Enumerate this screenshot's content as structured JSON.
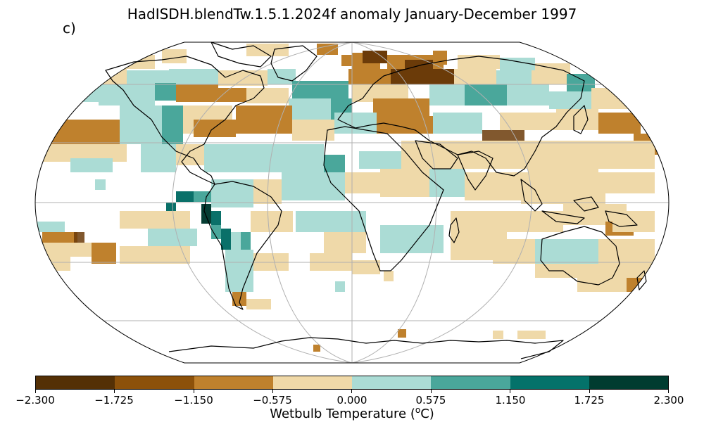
{
  "title": "HadISDH.blendTw.1.5.1.2024f anomaly January-December 1997",
  "panel_label": "c)",
  "colorbar": {
    "label_text": "Wetbulb Temperature (",
    "label_sup": "o",
    "label_unit": "C)",
    "ticks": [
      "−2.300",
      "−1.725",
      "−1.150",
      "−0.575",
      "0.000",
      "0.575",
      "1.150",
      "1.725",
      "2.300"
    ],
    "colors": [
      "#543005",
      "#8c510a",
      "#bf812d",
      "#f0d9a8",
      "#abdcd5",
      "#4aa79b",
      "#04726a",
      "#003c30"
    ]
  },
  "map": {
    "projection": "Robinson",
    "gridlines": true,
    "coastlines": true,
    "palette": {
      "dark_brown": "#6b3b09",
      "mid_brown": "#bf812d",
      "light_tan": "#efd9a9",
      "light_teal": "#abdcd5",
      "mid_teal": "#4aa79b",
      "dark_teal": "#0a7069",
      "darkest_teal": "#063d33"
    }
  }
}
